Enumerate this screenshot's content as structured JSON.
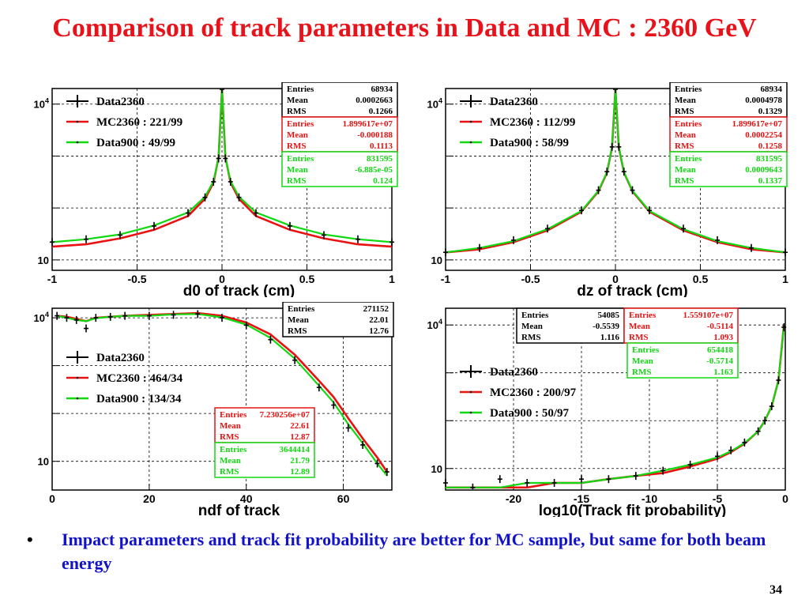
{
  "slide": {
    "title": "Comparison of track parameters in Data and MC : 2360 GeV",
    "bullet": "Impact parameters and track fit probability are better for MC sample, but same for both beam energy",
    "page_number": "34"
  },
  "colors": {
    "title": "#e8121b",
    "bullet": "#1212c8",
    "data2360": "#000000",
    "mc2360": "#e81212",
    "data900": "#12d812"
  },
  "chart_data": [
    {
      "type": "line",
      "xlabel": "d0 of track (cm)",
      "xlim": [
        -1,
        1
      ],
      "ylim_log10": [
        0.8,
        4.3
      ],
      "y_scale": "log",
      "xticks": [
        -1,
        -0.5,
        0,
        0.5,
        1
      ],
      "xtick_labels": [
        "-1",
        "-0.5",
        "0",
        "0.5",
        "1"
      ],
      "yticks": [
        {
          "value": 10,
          "label": "10"
        },
        {
          "value": 10000,
          "label": "10^4"
        }
      ],
      "grid": true,
      "legend": [
        {
          "label": "Data2360",
          "color": "#000000",
          "style": "marker"
        },
        {
          "label": "MC2360 : 221/99",
          "color": "#e81212",
          "style": "line"
        },
        {
          "label": "Data900 : 49/99",
          "color": "#12d812",
          "style": "line"
        }
      ],
      "stats": [
        {
          "color": "#000000",
          "rows": [
            [
              "Entries",
              "68934"
            ],
            [
              "Mean",
              "0.0002663"
            ],
            [
              "RMS",
              "0.1266"
            ]
          ]
        },
        {
          "color": "#e81212",
          "rows": [
            [
              "Entries",
              "1.899617e+07"
            ],
            [
              "Mean",
              "-0.000188"
            ],
            [
              "RMS",
              "0.1113"
            ]
          ]
        },
        {
          "color": "#12d812",
          "rows": [
            [
              "Entries",
              "831595"
            ],
            [
              "Mean",
              "-6.885e-05"
            ],
            [
              "RMS",
              "0.124"
            ]
          ]
        }
      ],
      "series": [
        {
          "name": "Data2360",
          "x": [
            -1,
            -0.8,
            -0.6,
            -0.4,
            -0.2,
            -0.1,
            -0.05,
            -0.02,
            0,
            0.02,
            0.05,
            0.1,
            0.2,
            0.4,
            0.6,
            0.8,
            1
          ],
          "y": [
            22,
            25,
            30,
            45,
            80,
            160,
            320,
            900,
            20000,
            900,
            320,
            160,
            80,
            45,
            30,
            25,
            22
          ]
        },
        {
          "name": "MC2360 : 221/99",
          "x": [
            -1,
            -0.8,
            -0.6,
            -0.4,
            -0.2,
            -0.1,
            -0.05,
            -0.02,
            0,
            0.02,
            0.05,
            0.1,
            0.2,
            0.4,
            0.6,
            0.8,
            1
          ],
          "y": [
            18,
            20,
            26,
            38,
            70,
            150,
            310,
            950,
            22000,
            950,
            310,
            150,
            70,
            38,
            26,
            20,
            18
          ]
        },
        {
          "name": "Data900 : 49/99",
          "x": [
            -1,
            -0.8,
            -0.6,
            -0.4,
            -0.2,
            -0.1,
            -0.05,
            -0.02,
            0,
            0.02,
            0.05,
            0.1,
            0.2,
            0.4,
            0.6,
            0.8,
            1
          ],
          "y": [
            22,
            25,
            31,
            46,
            82,
            165,
            330,
            920,
            21000,
            920,
            330,
            165,
            82,
            46,
            31,
            25,
            22
          ]
        }
      ]
    },
    {
      "type": "line",
      "xlabel": "dz of track (cm)",
      "xlim": [
        -1,
        1
      ],
      "ylim_log10": [
        0.8,
        4.3
      ],
      "y_scale": "log",
      "xticks": [
        -1,
        -0.5,
        0,
        0.5,
        1
      ],
      "xtick_labels": [
        "-1",
        "-0.5",
        "0",
        "0.5",
        "1"
      ],
      "yticks": [
        {
          "value": 10,
          "label": "10"
        },
        {
          "value": 10000,
          "label": "10^4"
        }
      ],
      "grid": true,
      "legend": [
        {
          "label": "Data2360",
          "color": "#000000",
          "style": "marker"
        },
        {
          "label": "MC2360 : 112/99",
          "color": "#e81212",
          "style": "line"
        },
        {
          "label": "Data900 : 58/99",
          "color": "#12d812",
          "style": "line"
        }
      ],
      "stats": [
        {
          "color": "#000000",
          "rows": [
            [
              "Entries",
              "68934"
            ],
            [
              "Mean",
              "0.0004978"
            ],
            [
              "RMS",
              "0.1329"
            ]
          ]
        },
        {
          "color": "#e81212",
          "rows": [
            [
              "Entries",
              "1.899617e+07"
            ],
            [
              "Mean",
              "0.0002254"
            ],
            [
              "RMS",
              "0.1258"
            ]
          ]
        },
        {
          "color": "#12d812",
          "rows": [
            [
              "Entries",
              "831595"
            ],
            [
              "Mean",
              "0.0009643"
            ],
            [
              "RMS",
              "0.1337"
            ]
          ]
        }
      ],
      "series": [
        {
          "name": "Data2360",
          "x": [
            -1,
            -0.8,
            -0.6,
            -0.4,
            -0.2,
            -0.1,
            -0.05,
            -0.02,
            0,
            0.02,
            0.05,
            0.1,
            0.2,
            0.4,
            0.6,
            0.8,
            1
          ],
          "y": [
            14,
            17,
            24,
            40,
            90,
            220,
            500,
            1500,
            21000,
            1500,
            500,
            220,
            90,
            40,
            24,
            17,
            14
          ]
        },
        {
          "name": "MC2360 : 112/99",
          "x": [
            -1,
            -0.8,
            -0.6,
            -0.4,
            -0.2,
            -0.1,
            -0.05,
            -0.02,
            0,
            0.02,
            0.05,
            0.1,
            0.2,
            0.4,
            0.6,
            0.8,
            1
          ],
          "y": [
            14,
            16,
            22,
            37,
            85,
            210,
            480,
            1450,
            22000,
            1450,
            480,
            210,
            85,
            37,
            22,
            16,
            14
          ]
        },
        {
          "name": "Data900 : 58/99",
          "x": [
            -1,
            -0.8,
            -0.6,
            -0.4,
            -0.2,
            -0.1,
            -0.05,
            -0.02,
            0,
            0.02,
            0.05,
            0.1,
            0.2,
            0.4,
            0.6,
            0.8,
            1
          ],
          "y": [
            14,
            17,
            23,
            39,
            88,
            215,
            490,
            1480,
            21500,
            1480,
            490,
            215,
            88,
            39,
            23,
            17,
            14
          ]
        }
      ]
    },
    {
      "type": "line",
      "xlabel": "ndf of track",
      "xlim": [
        0,
        70
      ],
      "ylim_log10": [
        0.4,
        4.2
      ],
      "y_scale": "log",
      "xticks": [
        0,
        20,
        40,
        60
      ],
      "xtick_labels": [
        "0",
        "20",
        "40",
        "60"
      ],
      "yticks": [
        {
          "value": 10,
          "label": "10"
        },
        {
          "value": 10000,
          "label": "10^4"
        }
      ],
      "grid": true,
      "legend": [
        {
          "label": "Data2360",
          "color": "#000000",
          "style": "marker"
        },
        {
          "label": "MC2360 : 464/34",
          "color": "#e81212",
          "style": "line"
        },
        {
          "label": "Data900 : 134/34",
          "color": "#12d812",
          "style": "line"
        }
      ],
      "stats": [
        {
          "color": "#000000",
          "rows": [
            [
              "Entries",
              "271152"
            ],
            [
              "Mean",
              "22.01"
            ],
            [
              "RMS",
              "12.76"
            ]
          ]
        },
        {
          "color": "#e81212",
          "rows": [
            [
              "Entries",
              "7.230256e+07"
            ],
            [
              "Mean",
              "22.61"
            ],
            [
              "RMS",
              "12.87"
            ]
          ]
        },
        {
          "color": "#12d812",
          "rows": [
            [
              "Entries",
              "3644414"
            ],
            [
              "Mean",
              "21.79"
            ],
            [
              "RMS",
              "12.89"
            ]
          ]
        }
      ],
      "series": [
        {
          "name": "Data2360",
          "x": [
            1,
            3,
            5,
            7,
            9,
            12,
            15,
            20,
            25,
            30,
            35,
            40,
            45,
            50,
            55,
            58,
            61,
            64,
            67,
            69
          ],
          "y": [
            11000,
            10000,
            9000,
            6000,
            10000,
            10500,
            11000,
            11000,
            11500,
            12000,
            10000,
            7000,
            3500,
            1300,
            350,
            150,
            50,
            22,
            9,
            6
          ]
        },
        {
          "name": "MC2360 : 464/34",
          "x": [
            1,
            3,
            5,
            7,
            9,
            12,
            15,
            20,
            25,
            30,
            35,
            40,
            45,
            50,
            55,
            58,
            61,
            64,
            67,
            69
          ],
          "y": [
            11000,
            10500,
            9500,
            8500,
            10000,
            10500,
            11000,
            11500,
            12000,
            12500,
            11000,
            8000,
            4500,
            1700,
            480,
            220,
            80,
            30,
            12,
            6
          ]
        },
        {
          "name": "Data900 : 134/34",
          "x": [
            1,
            3,
            5,
            7,
            9,
            12,
            15,
            20,
            25,
            30,
            35,
            40,
            45,
            50,
            55,
            58,
            61,
            64,
            67,
            69
          ],
          "y": [
            11000,
            10000,
            9000,
            8500,
            9800,
            10500,
            11000,
            11000,
            11800,
            12000,
            10200,
            7200,
            3800,
            1400,
            380,
            170,
            60,
            24,
            9,
            5
          ]
        }
      ]
    },
    {
      "type": "line",
      "xlabel": "log10(Track fit probability)",
      "xlim": [
        -25,
        0
      ],
      "ylim_log10": [
        0.55,
        4.35
      ],
      "y_scale": "log",
      "xticks": [
        -20,
        -15,
        -10,
        -5,
        0
      ],
      "xtick_labels": [
        "-20",
        "-15",
        "-10",
        "-5",
        "0"
      ],
      "yticks": [
        {
          "value": 10,
          "label": "10"
        },
        {
          "value": 10000,
          "label": "10^4"
        }
      ],
      "grid": true,
      "legend": [
        {
          "label": "Data2360",
          "color": "#000000",
          "style": "marker"
        },
        {
          "label": "MC2360 : 200/97",
          "color": "#e81212",
          "style": "line"
        },
        {
          "label": "Data900 : 50/97",
          "color": "#12d812",
          "style": "line"
        }
      ],
      "stats": [
        {
          "color": "#000000",
          "rows": [
            [
              "Entries",
              "54085"
            ],
            [
              "Mean",
              "-0.5539"
            ],
            [
              "RMS",
              "1.116"
            ]
          ]
        },
        {
          "color": "#e81212",
          "rows": [
            [
              "Entries",
              "1.559107e+07"
            ],
            [
              "Mean",
              "-0.5114"
            ],
            [
              "RMS",
              "1.093"
            ]
          ]
        },
        {
          "color": "#12d812",
          "rows": [
            [
              "Entries",
              "654418"
            ],
            [
              "Mean",
              "-0.5714"
            ],
            [
              "RMS",
              "1.163"
            ]
          ]
        }
      ],
      "series": [
        {
          "name": "Data2360",
          "x": [
            -25,
            -23,
            -21,
            -19,
            -17,
            -15,
            -13,
            -11,
            -9,
            -7,
            -5,
            -4,
            -3,
            -2,
            -1.5,
            -1,
            -0.5,
            -0.1
          ],
          "y": [
            5,
            4,
            6,
            5,
            5,
            6,
            6,
            7,
            9,
            12,
            18,
            24,
            35,
            60,
            100,
            200,
            700,
            9000
          ]
        },
        {
          "name": "MC2360 : 200/97",
          "x": [
            -25,
            -23,
            -21,
            -19,
            -17,
            -15,
            -13,
            -11,
            -9,
            -7,
            -5,
            -4,
            -3,
            -2,
            -1.5,
            -1,
            -0.5,
            -0.1
          ],
          "y": [
            4,
            4,
            4,
            4,
            5,
            5,
            6,
            7,
            8,
            11,
            16,
            22,
            33,
            60,
            100,
            200,
            700,
            10000
          ]
        },
        {
          "name": "Data900 : 50/97",
          "x": [
            -25,
            -23,
            -21,
            -19,
            -17,
            -15,
            -13,
            -11,
            -9,
            -7,
            -5,
            -4,
            -3,
            -2,
            -1.5,
            -1,
            -0.5,
            -0.1
          ],
          "y": [
            4,
            4,
            4,
            5,
            5,
            5,
            6,
            7,
            9,
            12,
            17,
            23,
            34,
            60,
            100,
            200,
            700,
            9500
          ]
        }
      ]
    }
  ]
}
